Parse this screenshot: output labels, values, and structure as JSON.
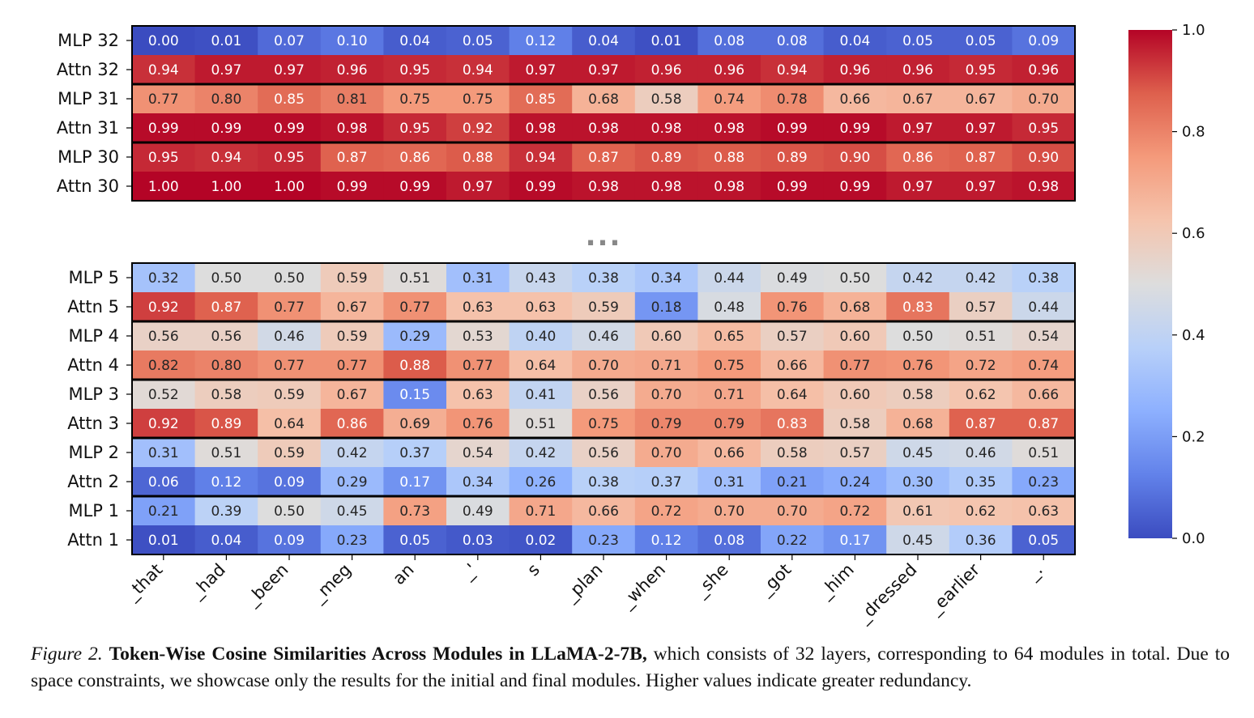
{
  "chart_data": {
    "type": "heatmap",
    "colormap": "coolwarm",
    "color_range": [
      0.0,
      1.0
    ],
    "colorbar_ticks": [
      "0.0",
      "0.2",
      "0.4",
      "0.6",
      "0.8",
      "1.0"
    ],
    "columns": [
      "_that",
      "_had",
      "_been",
      "_meg",
      "an",
      "_'",
      "s",
      "_plan",
      "_when",
      "_she",
      "_got",
      "_him",
      "_dressed",
      "_earlier",
      "_."
    ],
    "ellipsis": "...",
    "panels": [
      {
        "rows": [
          {
            "label": "MLP 32",
            "values": [
              0.0,
              0.01,
              0.07,
              0.1,
              0.04,
              0.05,
              0.12,
              0.04,
              0.01,
              0.08,
              0.08,
              0.04,
              0.05,
              0.05,
              0.09
            ]
          },
          {
            "label": "Attn 32",
            "values": [
              0.94,
              0.97,
              0.97,
              0.96,
              0.95,
              0.94,
              0.97,
              0.97,
              0.96,
              0.96,
              0.94,
              0.96,
              0.96,
              0.95,
              0.96
            ]
          },
          {
            "label": "MLP 31",
            "values": [
              0.77,
              0.8,
              0.85,
              0.81,
              0.75,
              0.75,
              0.85,
              0.68,
              0.58,
              0.74,
              0.78,
              0.66,
              0.67,
              0.67,
              0.7
            ]
          },
          {
            "label": "Attn 31",
            "values": [
              0.99,
              0.99,
              0.99,
              0.98,
              0.95,
              0.92,
              0.98,
              0.98,
              0.98,
              0.98,
              0.99,
              0.99,
              0.97,
              0.97,
              0.95
            ]
          },
          {
            "label": "MLP 30",
            "values": [
              0.95,
              0.94,
              0.95,
              0.87,
              0.86,
              0.88,
              0.94,
              0.87,
              0.89,
              0.88,
              0.89,
              0.9,
              0.86,
              0.87,
              0.9
            ]
          },
          {
            "label": "Attn 30",
            "values": [
              1.0,
              1.0,
              1.0,
              0.99,
              0.99,
              0.97,
              0.99,
              0.98,
              0.98,
              0.98,
              0.99,
              0.99,
              0.97,
              0.97,
              0.98
            ]
          }
        ]
      },
      {
        "rows": [
          {
            "label": "MLP 5",
            "values": [
              0.32,
              0.5,
              0.5,
              0.59,
              0.51,
              0.31,
              0.43,
              0.38,
              0.34,
              0.44,
              0.49,
              0.5,
              0.42,
              0.42,
              0.38
            ]
          },
          {
            "label": "Attn 5",
            "values": [
              0.92,
              0.87,
              0.77,
              0.67,
              0.77,
              0.63,
              0.63,
              0.59,
              0.18,
              0.48,
              0.76,
              0.68,
              0.83,
              0.57,
              0.44
            ]
          },
          {
            "label": "MLP 4",
            "values": [
              0.56,
              0.56,
              0.46,
              0.59,
              0.29,
              0.53,
              0.4,
              0.46,
              0.6,
              0.65,
              0.57,
              0.6,
              0.5,
              0.51,
              0.54
            ]
          },
          {
            "label": "Attn 4",
            "values": [
              0.82,
              0.8,
              0.77,
              0.77,
              0.88,
              0.77,
              0.64,
              0.7,
              0.71,
              0.75,
              0.66,
              0.77,
              0.76,
              0.72,
              0.74
            ]
          },
          {
            "label": "MLP 3",
            "values": [
              0.52,
              0.58,
              0.59,
              0.67,
              0.15,
              0.63,
              0.41,
              0.56,
              0.7,
              0.71,
              0.64,
              0.6,
              0.58,
              0.62,
              0.66
            ]
          },
          {
            "label": "Attn 3",
            "values": [
              0.92,
              0.89,
              0.64,
              0.86,
              0.69,
              0.76,
              0.51,
              0.75,
              0.79,
              0.79,
              0.83,
              0.58,
              0.68,
              0.87,
              0.87
            ]
          },
          {
            "label": "MLP 2",
            "values": [
              0.31,
              0.51,
              0.59,
              0.42,
              0.37,
              0.54,
              0.42,
              0.56,
              0.7,
              0.66,
              0.58,
              0.57,
              0.45,
              0.46,
              0.51
            ]
          },
          {
            "label": "Attn 2",
            "values": [
              0.06,
              0.12,
              0.09,
              0.29,
              0.17,
              0.34,
              0.26,
              0.38,
              0.37,
              0.31,
              0.21,
              0.24,
              0.3,
              0.35,
              0.23
            ]
          },
          {
            "label": "MLP 1",
            "values": [
              0.21,
              0.39,
              0.5,
              0.45,
              0.73,
              0.49,
              0.71,
              0.66,
              0.72,
              0.7,
              0.7,
              0.72,
              0.61,
              0.62,
              0.63
            ]
          },
          {
            "label": "Attn 1",
            "values": [
              0.01,
              0.04,
              0.09,
              0.23,
              0.05,
              0.03,
              0.02,
              0.23,
              0.12,
              0.08,
              0.22,
              0.17,
              0.45,
              0.36,
              0.05
            ]
          }
        ]
      }
    ]
  },
  "caption": {
    "label": "Figure 2.",
    "title": "Token-Wise Cosine Similarities Across Modules in LLaMA-2-7B,",
    "text": "which consists of 32 layers, corresponding to 64 modules in total. Due to space constraints, we showcase only the results for the initial and final modules. Higher values indicate greater redundancy."
  }
}
